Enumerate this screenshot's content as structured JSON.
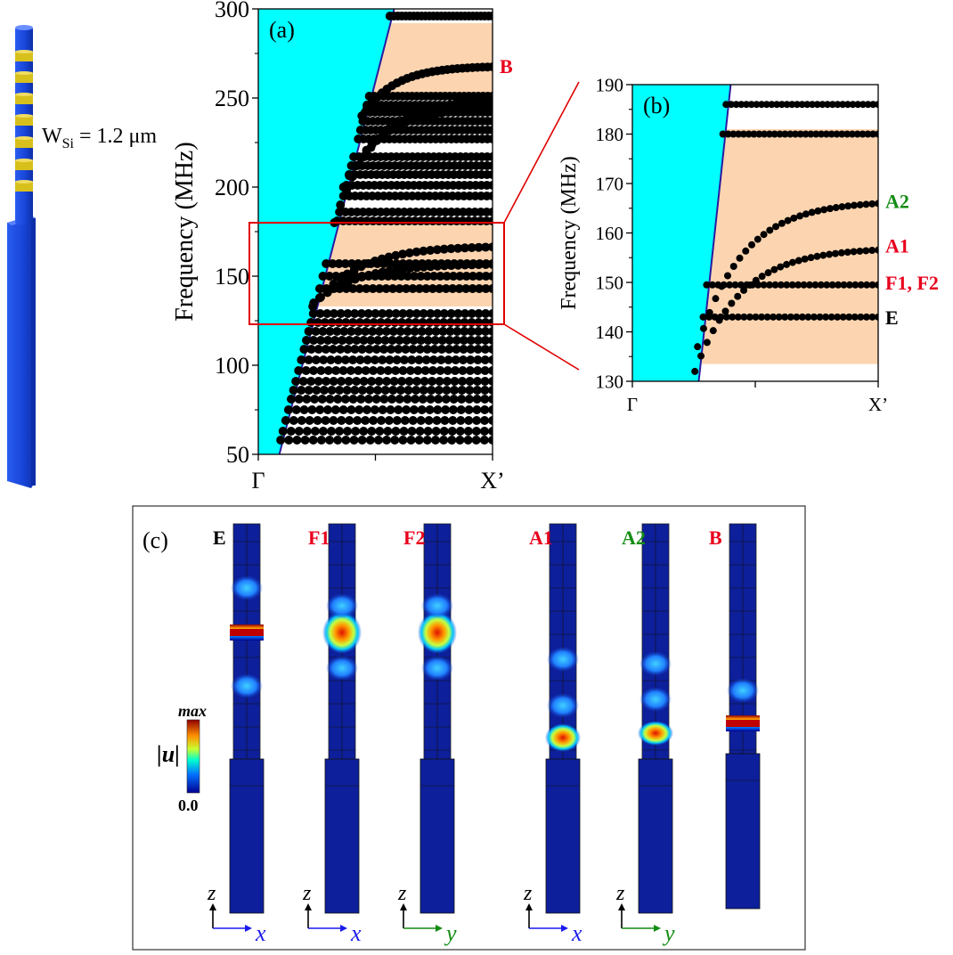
{
  "figure": {
    "width_label": "W",
    "width_sub": "Si",
    "width_value": " = 1.2 μm"
  },
  "colors": {
    "continuum": "#00ffff",
    "bandgap": "#fcd5b0",
    "point": "#000000",
    "zoom_box": "#e00000",
    "mode_red": "#e8001c",
    "mode_green": "#148c14",
    "mode_black": "#000000",
    "axis_x": "#1a1aee",
    "axis_y": "#148c14",
    "rod_blue": "#1846d8",
    "rod_yellow": "#d8c01c"
  },
  "chart_data": [
    {
      "panel": "(a)",
      "type": "scatter",
      "ylabel": "Frequency (MHz)",
      "xticks": [
        "Γ",
        "X’"
      ],
      "ylim": [
        50,
        300
      ],
      "yticks": [
        "50",
        "100",
        "150",
        "200",
        "250",
        "300"
      ],
      "continuum": {
        "bottom_k": 0.09,
        "top_k": 0.58,
        "fmin": 50,
        "fmax": 300
      },
      "bandgaps": [
        [
          133,
          180
        ],
        [
          252,
          292
        ]
      ],
      "flat_bands": [
        58,
        63,
        69,
        75,
        81,
        86,
        91,
        97,
        103,
        109,
        114,
        119,
        124,
        129,
        143,
        150,
        157,
        181,
        186,
        195,
        201,
        207,
        212,
        217,
        227,
        232,
        237,
        242,
        246,
        251,
        296
      ],
      "dispersive_bands": [
        {
          "f0": 133,
          "f1": 167
        },
        {
          "f0": 135,
          "f1": 157
        },
        {
          "f0": 180,
          "f1": 250
        },
        {
          "f0": 200,
          "f1": 245
        },
        {
          "f0": 240,
          "f1": 268
        }
      ],
      "labels": [
        {
          "text": "B",
          "f": 268,
          "color": "red"
        }
      ]
    },
    {
      "panel": "(b)",
      "type": "scatter",
      "ylabel": "Frequency (MHz)",
      "xticks": [
        "Γ",
        "X’"
      ],
      "ylim": [
        130,
        190
      ],
      "yticks": [
        "130",
        "140",
        "150",
        "160",
        "170",
        "180",
        "190"
      ],
      "continuum": {
        "bottom_k": 0.27,
        "top_k": 0.4,
        "fmin": 130,
        "fmax": 190
      },
      "bandgaps": [
        [
          133.5,
          181
        ]
      ],
      "flat_bands": [
        143,
        149.5,
        180,
        186
      ],
      "dispersive_bands": [
        {
          "f0": 137,
          "f1": 166.5
        },
        {
          "f0": 132,
          "f1": 157
        }
      ],
      "labels": [
        {
          "text": "A2",
          "f": 166.5,
          "color": "green"
        },
        {
          "text": "A1",
          "f": 157.5,
          "color": "red"
        },
        {
          "text": "F1, F2",
          "f": 150,
          "color": "red"
        },
        {
          "text": "E",
          "f": 143,
          "color": "black"
        }
      ]
    }
  ],
  "panel_c": {
    "label": "(c)",
    "colorbar": {
      "max": "max",
      "min": "0.0",
      "quantity": "|u|"
    },
    "modes": [
      {
        "name": "E",
        "color": "black",
        "axis": "x"
      },
      {
        "name": "F1",
        "color": "red",
        "axis": "x"
      },
      {
        "name": "F2",
        "color": "red",
        "axis": "y"
      },
      {
        "name": "A1",
        "color": "red",
        "axis": "x"
      },
      {
        "name": "A2",
        "color": "green",
        "axis": "y"
      },
      {
        "name": "B",
        "color": "red",
        "axis": "none"
      }
    ],
    "axis_z": "z"
  }
}
